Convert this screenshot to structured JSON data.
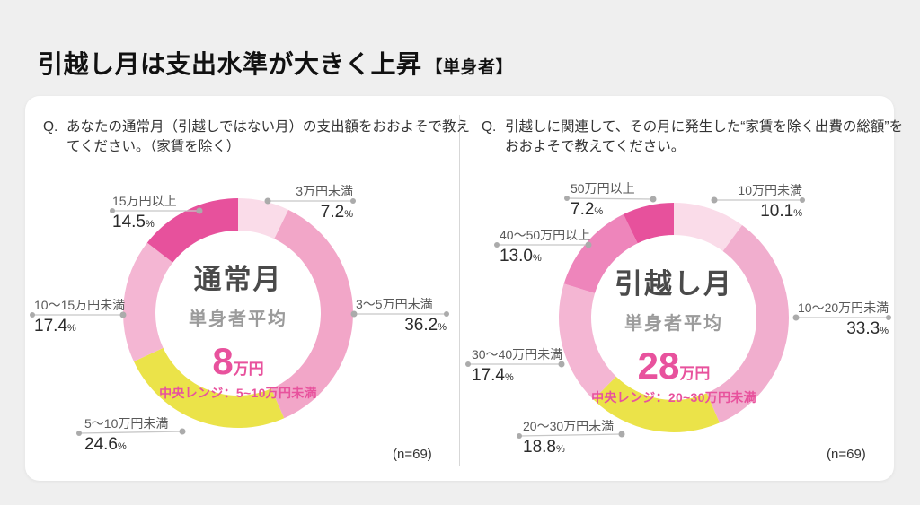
{
  "header": {
    "title": "引越し月は支出水準が大きく上昇",
    "title_suffix": "【単身者】"
  },
  "percent_symbol": "%",
  "chart_data": [
    {
      "type": "pie",
      "variant": "donut",
      "question_prefix": "Q.",
      "question": "あなたの通常月（引越しではない月）の支出額をおおよそで教えてください。（家賃を除く）",
      "center": {
        "title": "通常月",
        "subtitle": "単身者平均",
        "average_value": "8",
        "average_unit": "万円",
        "range_label": "中央レンジ：5~10万円未満"
      },
      "n_label": "(n=69)",
      "start_angle": "top",
      "direction": "clockwise",
      "segments": [
        {
          "label": "3万円未満",
          "value": 7.2,
          "pct_text": "7.2",
          "color": "#FADCE9"
        },
        {
          "label": "3〜5万円未満",
          "value": 36.2,
          "pct_text": "36.2",
          "color": "#F2A6C8"
        },
        {
          "label": "5〜10万円未満",
          "value": 24.6,
          "pct_text": "24.6",
          "color": "#EBE349"
        },
        {
          "label": "10〜15万円未満",
          "value": 17.4,
          "pct_text": "17.4",
          "color": "#F4B6D3"
        },
        {
          "label": "15万円以上",
          "value": 14.5,
          "pct_text": "14.5",
          "color": "#E7519C"
        }
      ]
    },
    {
      "type": "pie",
      "variant": "donut",
      "question_prefix": "Q.",
      "question": "引越しに関連して、その月に発生した“家賃を除く出費の総額”をおおよそで教えてください。",
      "center": {
        "title": "引越し月",
        "subtitle": "単身者平均",
        "average_value": "28",
        "average_unit": "万円",
        "range_label": "中央レンジ：20~30万円未満"
      },
      "n_label": "(n=69)",
      "start_angle": "top",
      "direction": "clockwise",
      "segments": [
        {
          "label": "10万円未満",
          "value": 10.1,
          "pct_text": "10.1",
          "color": "#FADCE9"
        },
        {
          "label": "10〜20万円未満",
          "value": 33.3,
          "pct_text": "33.3",
          "color": "#F1AECE"
        },
        {
          "label": "20〜30万円未満",
          "value": 18.8,
          "pct_text": "18.8",
          "color": "#EBE349"
        },
        {
          "label": "30〜40万円未満",
          "value": 17.4,
          "pct_text": "17.4",
          "color": "#F4B6D3"
        },
        {
          "label": "40〜50万円以上",
          "value": 13.0,
          "pct_text": "13.0",
          "color": "#EE85BB"
        },
        {
          "label": "50万円以上",
          "value": 7.2,
          "pct_text": "7.2",
          "color": "#E7519C"
        }
      ]
    }
  ]
}
